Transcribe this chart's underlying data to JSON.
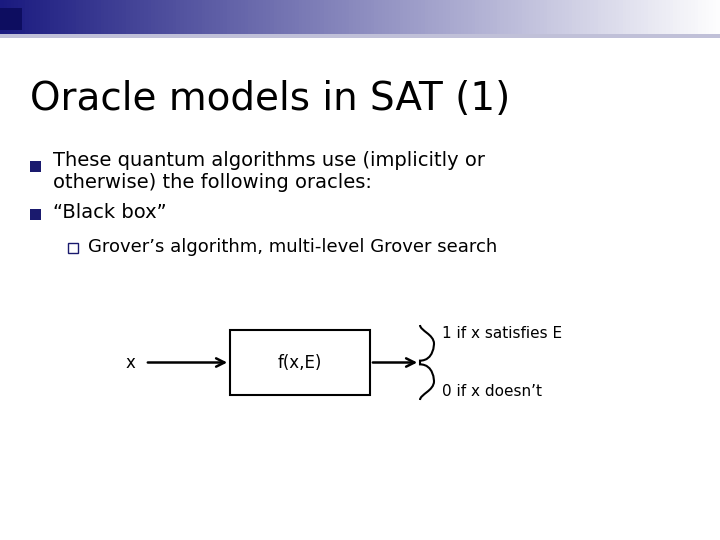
{
  "title": "Oracle models in SAT (1)",
  "title_fontsize": 28,
  "bg_color": "#ffffff",
  "bullet_color": "#1a1a6e",
  "text_color": "#000000",
  "text_fontsize": 14,
  "sub_fontsize": 13,
  "bullet1_line1": "These quantum algorithms use (implicitly or",
  "bullet1_line2": "otherwise) the following oracles:",
  "bullet2": "“Black box”",
  "sub_bullet": "Grover’s algorithm, multi-level Grover search",
  "box_label": "f(x,E)",
  "input_label": "x",
  "output1": "1 if x satisfies E",
  "output2": "0 if x doesn’t",
  "header_dark": "#1a1a80",
  "header_mid": "#7070a8",
  "header_light": "#d0d0e8"
}
